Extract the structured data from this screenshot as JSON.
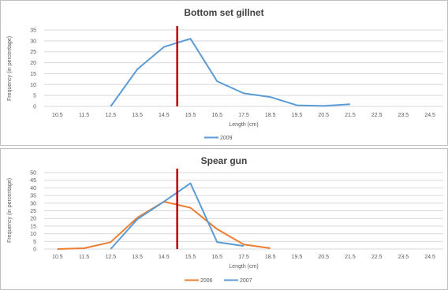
{
  "chart_data": [
    {
      "type": "line",
      "title": "Bottom set gillnet",
      "xlabel": "Length  (cm)",
      "ylabel": "Frequency (in percentage)",
      "categories": [
        "10.5",
        "11.5",
        "12.5",
        "13.5",
        "14.5",
        "15.5",
        "16.5",
        "17.5",
        "18.5",
        "19.5",
        "20.5",
        "21.5",
        "22.5",
        "23.5",
        "24.5"
      ],
      "ylim": [
        0,
        35
      ],
      "yticks": [
        0,
        5,
        10,
        15,
        20,
        25,
        30,
        35
      ],
      "grid": true,
      "legend_position": "bottom",
      "reference_line": {
        "x": 15.0,
        "color": "#c00000"
      },
      "series": [
        {
          "name": "2009",
          "color": "#5b9bd5",
          "values": [
            null,
            null,
            0,
            17,
            27.2,
            31,
            11.5,
            6,
            4.3,
            0.5,
            0.2,
            1,
            null,
            null,
            null
          ]
        }
      ]
    },
    {
      "type": "line",
      "title": "Spear gun",
      "xlabel": "Length (cm)",
      "ylabel": "Frequency (in percentage)",
      "categories": [
        "10.5",
        "11.5",
        "12.5",
        "13.5",
        "14.5",
        "15.5",
        "16.5",
        "17.5",
        "18.5",
        "19.5",
        "20.5",
        "21.5",
        "22.5",
        "23.5",
        "24.5"
      ],
      "ylim": [
        0,
        50
      ],
      "yticks": [
        0,
        5,
        10,
        15,
        20,
        25,
        30,
        35,
        40,
        45,
        50
      ],
      "grid": true,
      "legend_position": "bottom",
      "reference_line": {
        "x": 15.0,
        "color": "#c00000"
      },
      "series": [
        {
          "name": "2006",
          "color": "#ed7d31",
          "values": [
            0,
            0.5,
            4.5,
            20.5,
            31,
            27,
            13,
            3,
            0.5,
            null,
            null,
            null,
            null,
            null,
            null
          ]
        },
        {
          "name": "2007",
          "color": "#5b9bd5",
          "values": [
            null,
            null,
            0,
            19.5,
            31,
            43,
            4.5,
            2,
            null,
            null,
            null,
            null,
            null,
            null,
            null
          ]
        }
      ]
    }
  ]
}
